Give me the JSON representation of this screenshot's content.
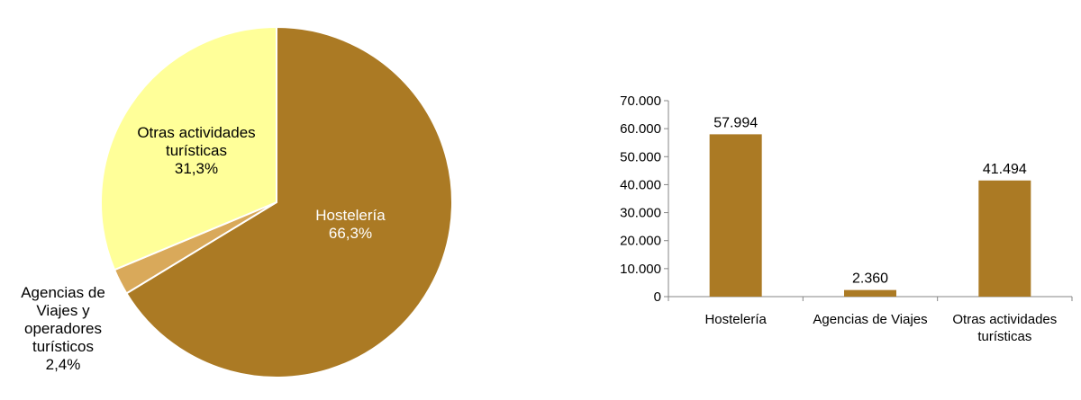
{
  "colors": {
    "hosteleria": "#AB7A24",
    "agencias": "#D9A95A",
    "otras": "#FFFF99",
    "bar": "#AB7A24",
    "axis": "#868686",
    "text": "#000000",
    "slice_text_dark": "#000000",
    "slice_text_light": "#ffffff"
  },
  "chart_data": [
    {
      "type": "pie",
      "slices": [
        {
          "label_lines": [
            "Hostelería"
          ],
          "pct_label": "66,3%",
          "value": 66.3,
          "color": "#AB7A24"
        },
        {
          "label_lines": [
            "Agencias de",
            "Viajes y",
            "operadores",
            "turísticos"
          ],
          "pct_label": "2,4%",
          "value": 2.4,
          "color": "#D9A95A"
        },
        {
          "label_lines": [
            "Otras actividades",
            "turísticas"
          ],
          "pct_label": "31,3%",
          "value": 31.3,
          "color": "#FFFF99"
        }
      ]
    },
    {
      "type": "bar",
      "categories": [
        {
          "label_lines": [
            "Hostelería"
          ]
        },
        {
          "label_lines": [
            "Agencias de Viajes"
          ]
        },
        {
          "label_lines": [
            "Otras actividades",
            "turísticas"
          ]
        }
      ],
      "values": [
        57994,
        2360,
        41494
      ],
      "value_labels": [
        "57.994",
        "2.360",
        "41.494"
      ],
      "ylim": [
        0,
        70000
      ],
      "yticks": [
        0,
        10000,
        20000,
        30000,
        40000,
        50000,
        60000,
        70000
      ],
      "ytick_labels": [
        "0",
        "10.000",
        "20.000",
        "30.000",
        "40.000",
        "50.000",
        "60.000",
        "70.000"
      ],
      "grid": false
    }
  ]
}
